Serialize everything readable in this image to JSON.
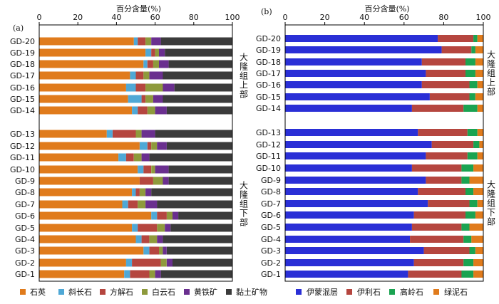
{
  "chart_data": [
    {
      "panel_label": "(a)",
      "type": "bar",
      "orientation": "horizontal",
      "stacked": true,
      "xlabel": "百分含量(%)",
      "xlim": [
        0,
        100
      ],
      "xticks": [
        "0",
        "20",
        "40",
        "60",
        "80",
        "100"
      ],
      "grid": false,
      "legend_position": "bottom",
      "groups": [
        {
          "label": "大隆组上部",
          "categories": [
            "GD-20",
            "GD-19",
            "GD-18",
            "GD-17",
            "GD-16",
            "GD-15",
            "GD-14"
          ]
        },
        {
          "label": "大隆组下部",
          "categories": [
            "GD-13",
            "GD-12",
            "GD-11",
            "GD-10",
            "GD-9",
            "GD-8",
            "GD-7",
            "GD-6",
            "GD-5",
            "GD-4",
            "GD-3",
            "GD-2",
            "GD-1"
          ]
        }
      ],
      "series": [
        {
          "name": "石英",
          "color": "#e07b1c",
          "values": {
            "GD-20": 49,
            "GD-19": 55,
            "GD-18": 54,
            "GD-17": 47,
            "GD-16": 45,
            "GD-15": 46,
            "GD-14": 48,
            "GD-13": 35,
            "GD-12": 52,
            "GD-11": 41,
            "GD-10": 51,
            "GD-9": 52,
            "GD-8": 48,
            "GD-7": 43,
            "GD-6": 58,
            "GD-5": 48,
            "GD-4": 50,
            "GD-3": 54,
            "GD-2": 45,
            "GD-1": 44
          }
        },
        {
          "name": "斜长石",
          "color": "#4fa8d6",
          "values": {
            "GD-20": 2,
            "GD-19": 3,
            "GD-18": 2,
            "GD-17": 3,
            "GD-16": 5,
            "GD-15": 7,
            "GD-14": 3,
            "GD-13": 3,
            "GD-12": 4,
            "GD-11": 4,
            "GD-10": 3,
            "GD-9": 0,
            "GD-8": 2,
            "GD-7": 3,
            "GD-6": 3,
            "GD-5": 3,
            "GD-4": 3,
            "GD-3": 3,
            "GD-2": 3,
            "GD-1": 3
          }
        },
        {
          "name": "方解石",
          "color": "#b5463f",
          "values": {
            "GD-20": 4,
            "GD-19": 2,
            "GD-18": 3,
            "GD-17": 4,
            "GD-16": 5,
            "GD-15": 2,
            "GD-14": 5,
            "GD-13": 12,
            "GD-12": 2,
            "GD-11": 4,
            "GD-10": 4,
            "GD-9": 7,
            "GD-8": 2,
            "GD-7": 5,
            "GD-6": 5,
            "GD-5": 10,
            "GD-4": 4,
            "GD-3": 5,
            "GD-2": 15,
            "GD-1": 10
          }
        },
        {
          "name": "白云石",
          "color": "#8e9a3c",
          "values": {
            "GD-20": 3,
            "GD-19": 2,
            "GD-18": 3,
            "GD-17": 3,
            "GD-16": 9,
            "GD-15": 4,
            "GD-14": 4,
            "GD-13": 3,
            "GD-12": 3,
            "GD-11": 4,
            "GD-10": 2,
            "GD-9": 5,
            "GD-8": 3,
            "GD-7": 4,
            "GD-6": 3,
            "GD-5": 4,
            "GD-4": 4,
            "GD-3": 2,
            "GD-2": 3,
            "GD-1": 3
          }
        },
        {
          "name": "黄铁矿",
          "color": "#6a2f8f",
          "values": {
            "GD-20": 5,
            "GD-19": 3,
            "GD-18": 5,
            "GD-17": 7,
            "GD-16": 6,
            "GD-15": 5,
            "GD-14": 6,
            "GD-13": 7,
            "GD-12": 5,
            "GD-11": 4,
            "GD-10": 7,
            "GD-9": 3,
            "GD-8": 3,
            "GD-7": 6,
            "GD-6": 3,
            "GD-5": 3,
            "GD-4": 3,
            "GD-3": 2,
            "GD-2": 3,
            "GD-1": 3
          }
        },
        {
          "name": "黏土矿物",
          "color": "#3b3b3b",
          "values": {
            "GD-20": 37,
            "GD-19": 35,
            "GD-18": 33,
            "GD-17": 36,
            "GD-16": 30,
            "GD-15": 36,
            "GD-14": 34,
            "GD-13": 40,
            "GD-12": 34,
            "GD-11": 43,
            "GD-10": 33,
            "GD-9": 33,
            "GD-8": 42,
            "GD-7": 39,
            "GD-6": 28,
            "GD-5": 32,
            "GD-4": 36,
            "GD-3": 34,
            "GD-2": 31,
            "GD-1": 37
          }
        }
      ]
    },
    {
      "panel_label": "(b)",
      "type": "bar",
      "orientation": "horizontal",
      "stacked": true,
      "xlabel": "百分含量(%)",
      "xlim": [
        0,
        100
      ],
      "xticks": [
        "0",
        "20",
        "40",
        "60",
        "80",
        "100"
      ],
      "grid": false,
      "legend_position": "bottom",
      "groups": [
        {
          "label": "大隆组上部",
          "categories": [
            "GD-20",
            "GD-19",
            "GD-18",
            "GD-17",
            "GD-16",
            "GD-15",
            "GD-14"
          ]
        },
        {
          "label": "大隆组下部",
          "categories": [
            "GD-13",
            "GD-12",
            "GD-11",
            "GD-10",
            "GD-9",
            "GD-8",
            "GD-7",
            "GD-6",
            "GD-5",
            "GD-4",
            "GD-3",
            "GD-2",
            "GD-1"
          ]
        }
      ],
      "series": [
        {
          "name": "伊蒙混层",
          "color": "#2a2fd6",
          "values": {
            "GD-20": 77,
            "GD-19": 79,
            "GD-18": 69,
            "GD-17": 71,
            "GD-16": 69,
            "GD-15": 73,
            "GD-14": 64,
            "GD-13": 67,
            "GD-12": 74,
            "GD-11": 71,
            "GD-10": 64,
            "GD-9": 71,
            "GD-8": 67,
            "GD-7": 72,
            "GD-6": 65,
            "GD-5": 64,
            "GD-4": 63,
            "GD-3": 70,
            "GD-2": 65,
            "GD-1": 62
          }
        },
        {
          "name": "伊利石",
          "color": "#b5463f",
          "values": {
            "GD-20": 18,
            "GD-19": 15,
            "GD-18": 22,
            "GD-17": 20,
            "GD-16": 24,
            "GD-15": 20,
            "GD-14": 26,
            "GD-13": 25,
            "GD-12": 21,
            "GD-11": 21,
            "GD-10": 25,
            "GD-9": 18,
            "GD-8": 24,
            "GD-7": 21,
            "GD-6": 26,
            "GD-5": 25,
            "GD-4": 27,
            "GD-3": 23,
            "GD-2": 25,
            "GD-1": 27
          }
        },
        {
          "name": "高岭石",
          "color": "#1aa351",
          "values": {
            "GD-20": 2,
            "GD-19": 2,
            "GD-18": 5,
            "GD-17": 5,
            "GD-16": 4,
            "GD-15": 3,
            "GD-14": 7,
            "GD-13": 5,
            "GD-12": 3,
            "GD-11": 5,
            "GD-10": 6,
            "GD-9": 4,
            "GD-8": 4,
            "GD-7": 4,
            "GD-6": 5,
            "GD-5": 4,
            "GD-4": 4,
            "GD-3": 3,
            "GD-2": 5,
            "GD-1": 6
          }
        },
        {
          "name": "绿泥石",
          "color": "#e07b1c",
          "values": {
            "GD-20": 3,
            "GD-19": 4,
            "GD-18": 4,
            "GD-17": 4,
            "GD-16": 3,
            "GD-15": 4,
            "GD-14": 3,
            "GD-13": 3,
            "GD-12": 2,
            "GD-11": 3,
            "GD-10": 5,
            "GD-9": 7,
            "GD-8": 5,
            "GD-7": 3,
            "GD-6": 4,
            "GD-5": 7,
            "GD-4": 6,
            "GD-3": 4,
            "GD-2": 5,
            "GD-1": 5
          }
        }
      ]
    }
  ]
}
